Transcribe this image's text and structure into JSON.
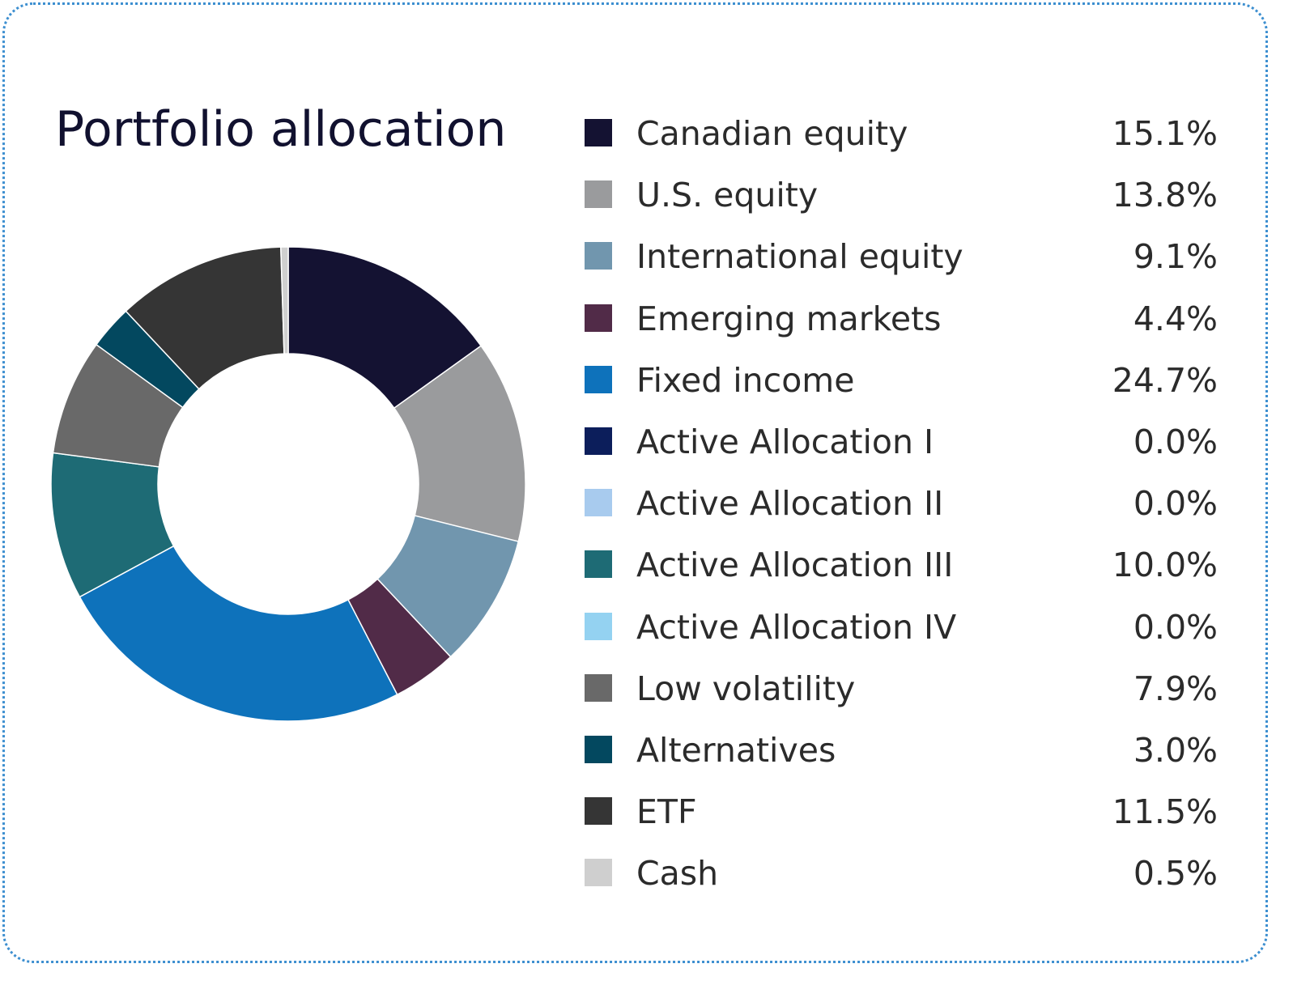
{
  "chart_data": {
    "type": "pie",
    "variant": "donut",
    "title": "Portfolio allocation",
    "legend_position": "right",
    "slices": [
      {
        "label": "Canadian equity",
        "value": 15.1,
        "display": "15.1%",
        "color": "#141232"
      },
      {
        "label": "U.S. equity",
        "value": 13.8,
        "display": "13.8%",
        "color": "#9a9b9d"
      },
      {
        "label": "International equity",
        "value": 9.1,
        "display": "9.1%",
        "color": "#7196ae"
      },
      {
        "label": "Emerging markets",
        "value": 4.4,
        "display": "4.4%",
        "color": "#512b48"
      },
      {
        "label": "Fixed income",
        "value": 24.7,
        "display": "24.7%",
        "color": "#0e72bb"
      },
      {
        "label": "Active Allocation I",
        "value": 0.0,
        "display": "0.0%",
        "color": "#0c1e5b"
      },
      {
        "label": "Active Allocation II",
        "value": 0.0,
        "display": "0.0%",
        "color": "#a8cbee"
      },
      {
        "label": "Active Allocation III",
        "value": 10.0,
        "display": "10.0%",
        "color": "#1e6b75"
      },
      {
        "label": "Active Allocation IV",
        "value": 0.0,
        "display": "0.0%",
        "color": "#94d2f1"
      },
      {
        "label": "Low volatility",
        "value": 7.9,
        "display": "7.9%",
        "color": "#696969"
      },
      {
        "label": "Alternatives",
        "value": 3.0,
        "display": "3.0%",
        "color": "#03485f"
      },
      {
        "label": "ETF",
        "value": 11.5,
        "display": "11.5%",
        "color": "#353535"
      },
      {
        "label": "Cash",
        "value": 0.5,
        "display": "0.5%",
        "color": "#cfcfcf"
      }
    ]
  },
  "colors": {
    "border": "#3d8fd0",
    "title": "#11112f",
    "text": "#2b2b2b"
  }
}
